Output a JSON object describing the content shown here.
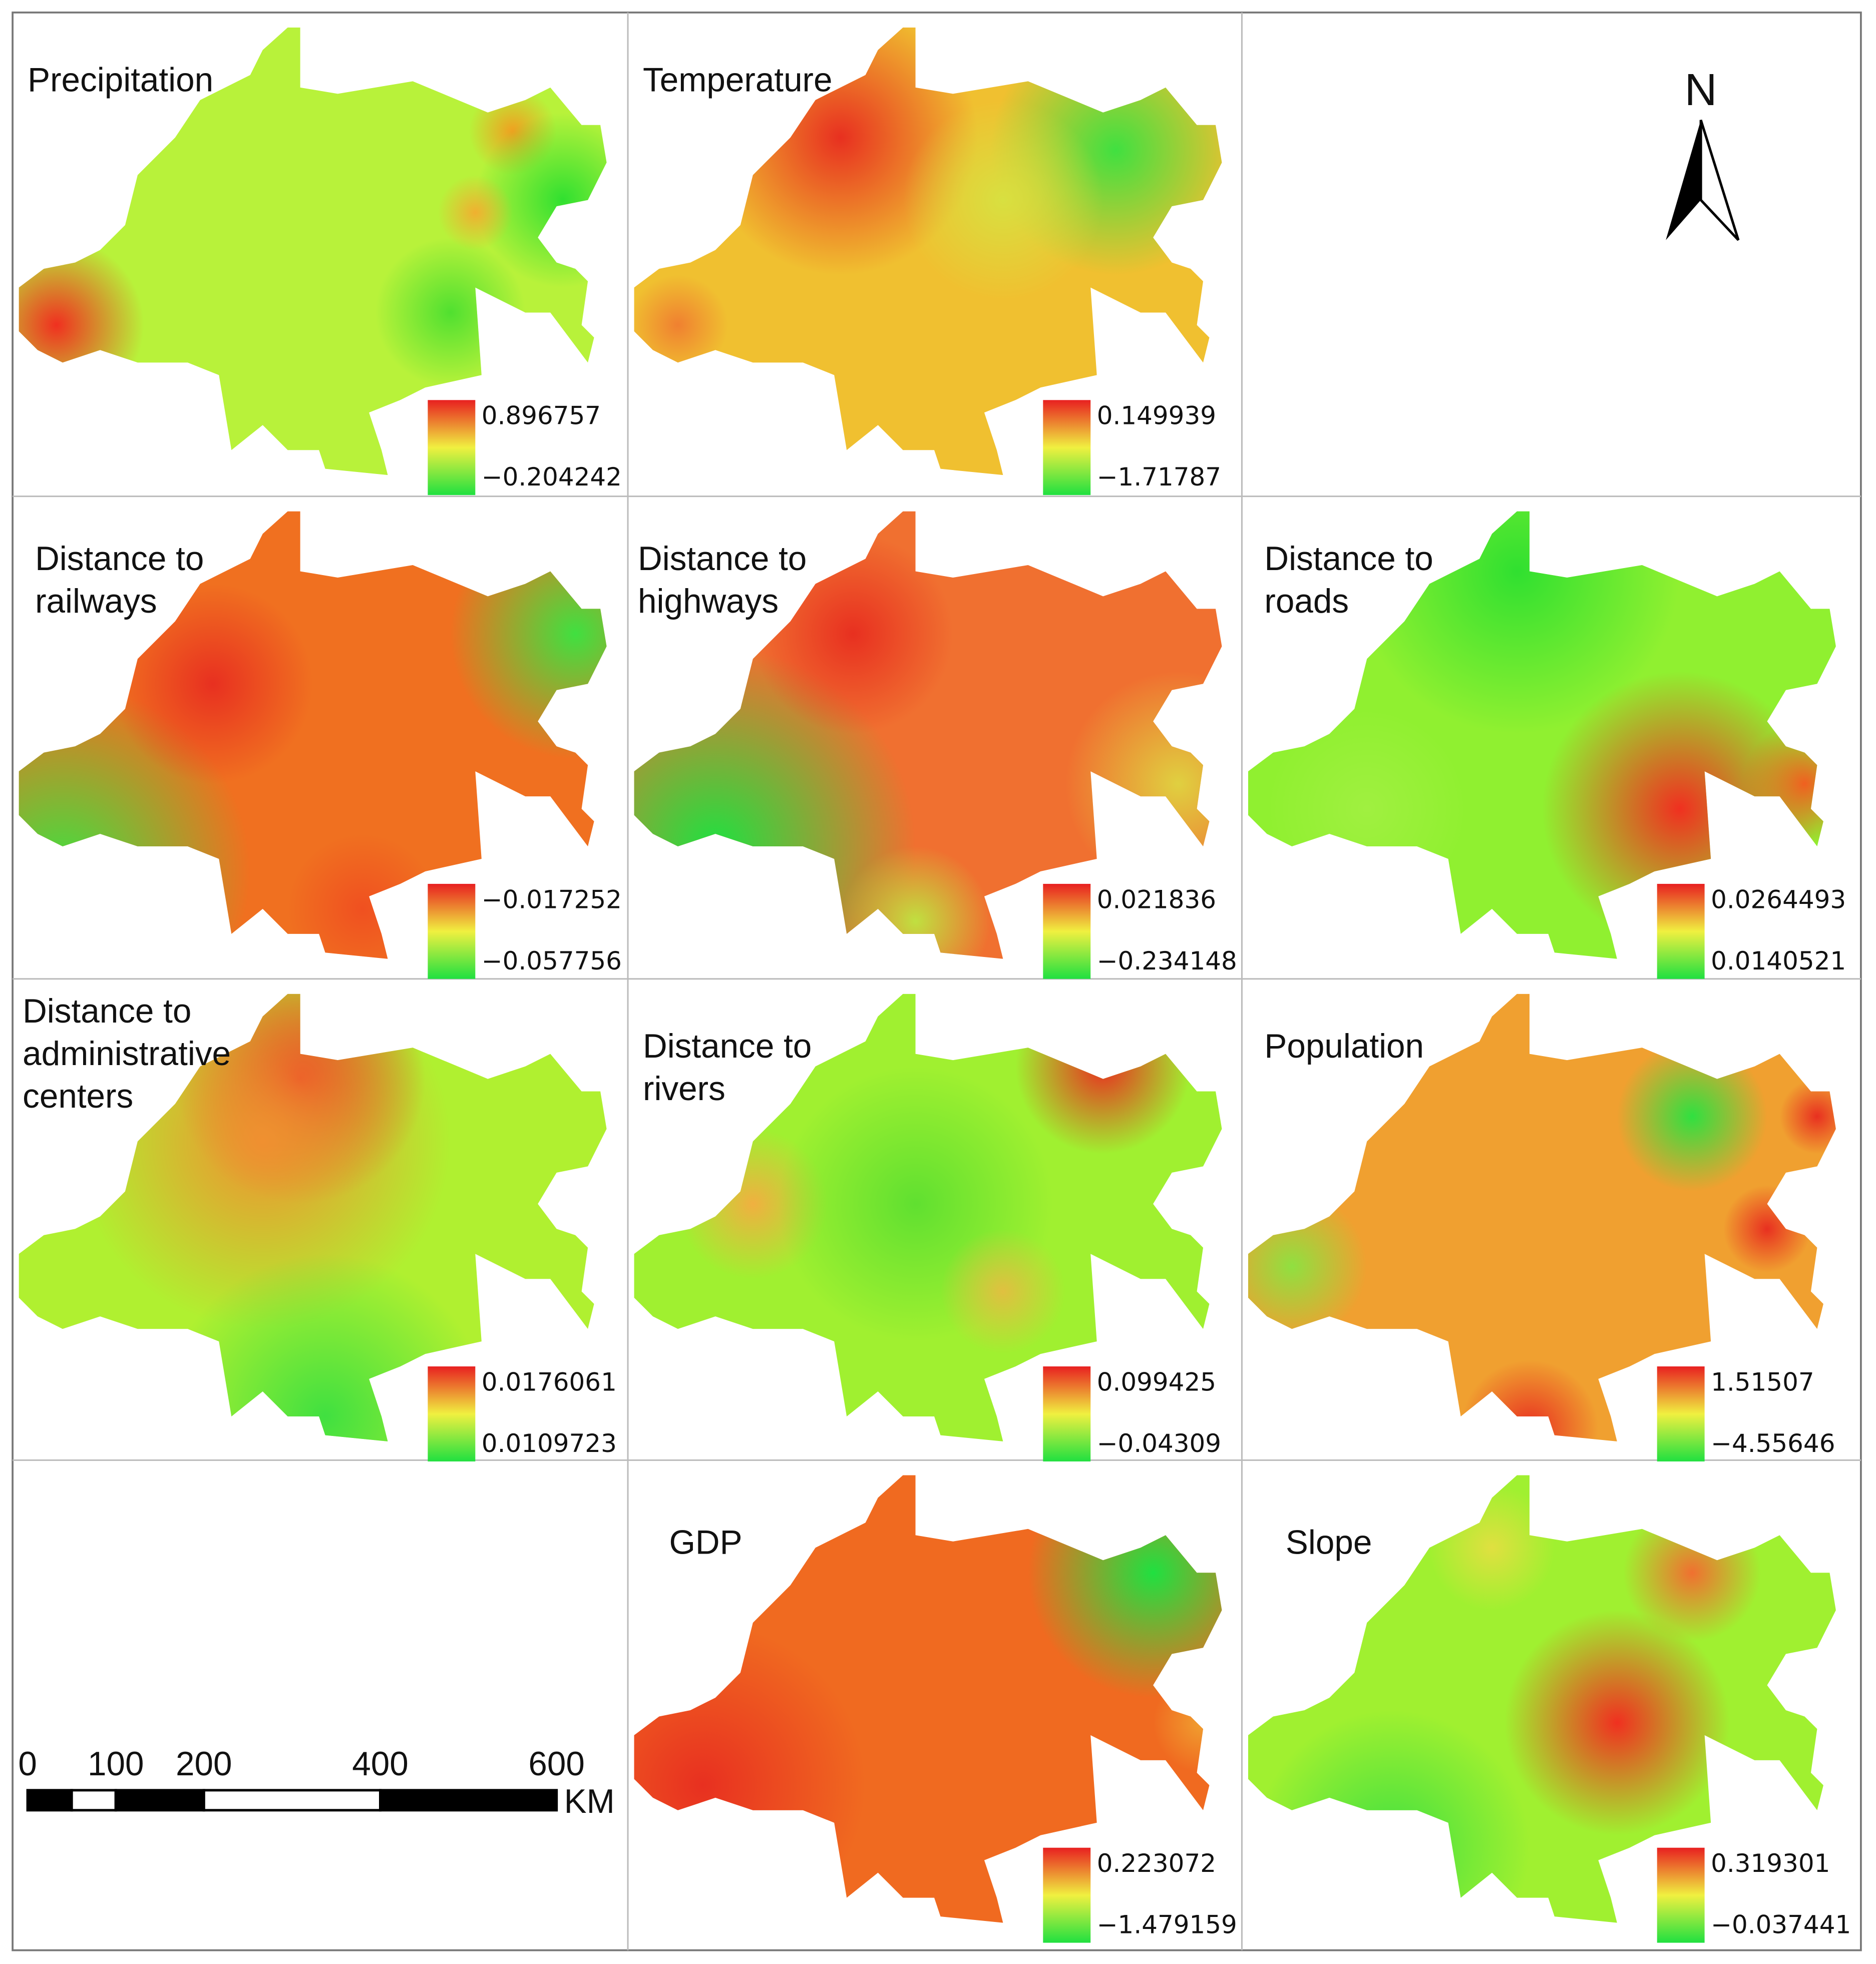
{
  "panels": [
    {
      "title": [
        "Precipitation"
      ],
      "legend_max": "0.896757",
      "legend_min": "−0.204242"
    },
    {
      "title": [
        "Temperature"
      ],
      "legend_max": "0.149939",
      "legend_min": "−1.71787"
    },
    {
      "title": [
        "Distance to",
        "railways"
      ],
      "legend_max": "−0.017252",
      "legend_min": "−0.057756"
    },
    {
      "title": [
        "Distance to",
        "highways"
      ],
      "legend_max": "0.021836",
      "legend_min": "−0.234148"
    },
    {
      "title": [
        "Distance to",
        "roads"
      ],
      "legend_max": "0.0264493",
      "legend_min": "0.0140521"
    },
    {
      "title": [
        "Distance to",
        "administrative",
        "centers"
      ],
      "legend_max": "0.0176061",
      "legend_min": "0.0109723"
    },
    {
      "title": [
        "Distance to",
        "rivers"
      ],
      "legend_max": "0.099425",
      "legend_min": "−0.04309"
    },
    {
      "title": [
        "Population"
      ],
      "legend_max": "1.51507",
      "legend_min": "−4.55646"
    },
    {
      "title": [
        "GDP"
      ],
      "legend_max": "0.223072",
      "legend_min": "−1.479159"
    },
    {
      "title": [
        "Slope"
      ],
      "legend_max": "0.319301",
      "legend_min": "−0.037441"
    }
  ],
  "north_arrow": {
    "label": "N"
  },
  "scale_bar": {
    "ticks": [
      0,
      100,
      200,
      400,
      600
    ],
    "unit": "KM"
  }
}
